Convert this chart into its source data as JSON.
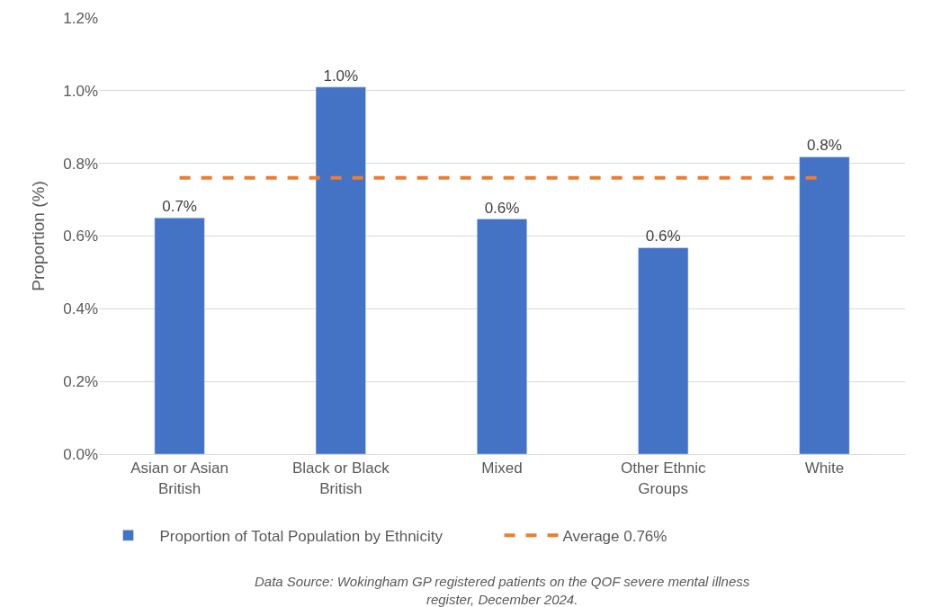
{
  "chart_data": {
    "type": "bar",
    "ylabel": "Proportion (%)",
    "categories": [
      "Asian or Asian British",
      "Black or Black British",
      "Mixed",
      "Other Ethnic Groups",
      "White"
    ],
    "series": [
      {
        "name": "Proportion of Total Population by Ethnicity",
        "color": "#4472c4",
        "values": [
          0.65,
          1.01,
          0.647,
          0.568,
          0.818
        ],
        "value_labels": [
          "0.7%",
          "1.0%",
          "0.6%",
          "0.6%",
          "0.8%"
        ]
      }
    ],
    "ref_lines": [
      {
        "axis": "y",
        "value": 0.76,
        "label": "Average 0.76%",
        "color": "#ed7d31",
        "line_style": "dashed"
      }
    ],
    "ylim": [
      0,
      1.2
    ],
    "yticks": [
      {
        "value": 0,
        "label": "0.0%"
      },
      {
        "value": 0.2,
        "label": "0.2%"
      },
      {
        "value": 0.4,
        "label": "0.4%"
      },
      {
        "value": 0.6,
        "label": "0.6%"
      },
      {
        "value": 0.8,
        "label": "0.8%"
      },
      {
        "value": 1.0,
        "label": "1.0%"
      },
      {
        "value": 1.2,
        "label": "1.2%"
      }
    ],
    "grid": "y",
    "legend": "bottom",
    "annotations": [
      "Data Source: Wokingham GP registered patients on the QOF severe mental illness register, December 2024."
    ]
  }
}
